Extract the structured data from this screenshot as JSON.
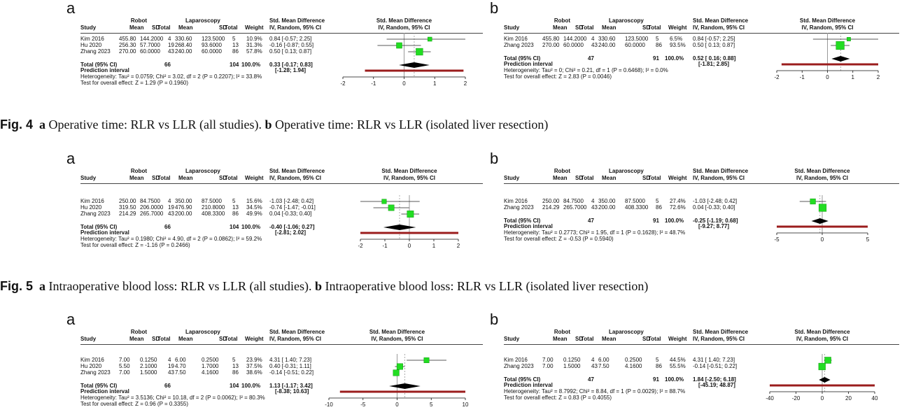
{
  "columns": {
    "study": "Study",
    "robot": "Robot",
    "laparoscopy": "Laparoscopy",
    "mean": "Mean",
    "sd": "SD",
    "total": "Total",
    "weight": "Weight",
    "smd_title": "Std. Mean Difference",
    "smd_sub": "IV, Random, 95% CI"
  },
  "total_label": "Total (95% CI)",
  "pi_label": "Prediction interval",
  "panels": [
    {
      "id": "fig4a",
      "label": "a",
      "axis": {
        "min": -2,
        "max": 2,
        "ticks": [
          "-2",
          "-1",
          "0",
          "1",
          "2"
        ]
      },
      "studies": [
        {
          "name": "Kim 2016",
          "r_mean": "455.80",
          "r_sd": "144.2000",
          "r_total": "4",
          "l_mean": "330.60",
          "l_sd": "123.5000",
          "l_total": "5",
          "weight": "10.9%",
          "ci": "0.84 [-0.57; 2.25]",
          "est": 0.84,
          "lo": -0.57,
          "hi": 2.25,
          "w": 10.9
        },
        {
          "name": "Hu 2020",
          "r_mean": "256.30",
          "r_sd": "57.7000",
          "r_total": "19",
          "l_mean": "268.40",
          "l_sd": "93.6000",
          "l_total": "13",
          "weight": "31.3%",
          "ci": "-0.16 [-0.87; 0.55]",
          "est": -0.16,
          "lo": -0.87,
          "hi": 0.55,
          "w": 31.3
        },
        {
          "name": "Zhang 2023",
          "r_mean": "270.00",
          "r_sd": "60.0000",
          "r_total": "43",
          "l_mean": "240.00",
          "l_sd": "60.0000",
          "l_total": "86",
          "weight": "57.8%",
          "ci": "0.50 [ 0.13; 0.87]",
          "est": 0.5,
          "lo": 0.13,
          "hi": 0.87,
          "w": 57.8
        }
      ],
      "total": {
        "r_total": "66",
        "l_total": "104",
        "weight": "100.0%",
        "ci": "0.33 [-0.17; 0.83]",
        "est": 0.33,
        "lo": -0.17,
        "hi": 0.83
      },
      "pi": {
        "ci": "[-1.28; 1.94]",
        "lo": -1.28,
        "hi": 1.94
      },
      "heterogeneity": "Heterogeneity: Tau² = 0.0759; Chi² = 3.02, df = 2 (P = 0.2207); I² = 33.8%",
      "overall": "Test for overall effect: Z = 1.29 (P = 0.1960)"
    },
    {
      "id": "fig4b",
      "label": "b",
      "axis": {
        "min": -2,
        "max": 2,
        "ticks": [
          "-2",
          "-1",
          "0",
          "1",
          "2"
        ]
      },
      "studies": [
        {
          "name": "Kim 2016",
          "r_mean": "455.80",
          "r_sd": "144.2000",
          "r_total": "4",
          "l_mean": "330.60",
          "l_sd": "123.5000",
          "l_total": "5",
          "weight": "6.5%",
          "ci": "0.84 [-0.57; 2.25]",
          "est": 0.84,
          "lo": -0.57,
          "hi": 2.25,
          "w": 6.5
        },
        {
          "name": "Zhang 2023",
          "r_mean": "270.00",
          "r_sd": "60.0000",
          "r_total": "43",
          "l_mean": "240.00",
          "l_sd": "60.0000",
          "l_total": "86",
          "weight": "93.5%",
          "ci": "0.50 [ 0.13; 0.87]",
          "est": 0.5,
          "lo": 0.13,
          "hi": 0.87,
          "w": 93.5
        }
      ],
      "total": {
        "r_total": "47",
        "l_total": "91",
        "weight": "100.0%",
        "ci": "0.52 [ 0.16; 0.88]",
        "est": 0.52,
        "lo": 0.16,
        "hi": 0.88
      },
      "pi": {
        "ci": "[-1.81; 2.85]",
        "lo": -1.81,
        "hi": 2.85
      },
      "heterogeneity": "Heterogeneity: Tau² = 0; Chi² = 0.21, df = 1 (P = 0.6468); I² = 0.0%",
      "overall": "Test for overall effect: Z = 2.83 (P = 0.0046)"
    },
    {
      "id": "fig5a",
      "label": "a",
      "axis": {
        "min": -2,
        "max": 2,
        "ticks": [
          "-2",
          "-1",
          "0",
          "1",
          "2"
        ]
      },
      "studies": [
        {
          "name": "Kim 2016",
          "r_mean": "250.00",
          "r_sd": "84.7500",
          "r_total": "4",
          "l_mean": "350.00",
          "l_sd": "87.5000",
          "l_total": "5",
          "weight": "15.6%",
          "ci": "-1.03 [-2.48; 0.42]",
          "est": -1.03,
          "lo": -2.48,
          "hi": 0.42,
          "w": 15.6
        },
        {
          "name": "Hu 2020",
          "r_mean": "319.50",
          "r_sd": "206.0000",
          "r_total": "19",
          "l_mean": "476.90",
          "l_sd": "210.8000",
          "l_total": "13",
          "weight": "34.5%",
          "ci": "-0.74 [-1.47; -0.01]",
          "est": -0.74,
          "lo": -1.47,
          "hi": -0.01,
          "w": 34.5
        },
        {
          "name": "Zhang 2023",
          "r_mean": "214.29",
          "r_sd": "265.7000",
          "r_total": "43",
          "l_mean": "200.00",
          "l_sd": "408.3300",
          "l_total": "86",
          "weight": "49.9%",
          "ci": "0.04 [-0.33; 0.40]",
          "est": 0.04,
          "lo": -0.33,
          "hi": 0.4,
          "w": 49.9
        }
      ],
      "total": {
        "r_total": "66",
        "l_total": "104",
        "weight": "100.0%",
        "ci": "-0.40 [-1.06; 0.27]",
        "est": -0.4,
        "lo": -1.06,
        "hi": 0.27
      },
      "pi": {
        "ci": "[-2.81; 2.02]",
        "lo": -2.81,
        "hi": 2.02
      },
      "heterogeneity": "Heterogeneity: Tau² = 0.1980; Chi² = 4.90, df = 2 (P = 0.0862); I² = 59.2%",
      "overall": "Test for overall effect: Z = -1.16 (P = 0.2466)"
    },
    {
      "id": "fig5b",
      "label": "b",
      "axis": {
        "min": -5,
        "max": 5,
        "ticks": [
          "-5",
          "0",
          "5"
        ]
      },
      "studies": [
        {
          "name": "Kim 2016",
          "r_mean": "250.00",
          "r_sd": "84.7500",
          "r_total": "4",
          "l_mean": "350.00",
          "l_sd": "87.5000",
          "l_total": "5",
          "weight": "27.4%",
          "ci": "-1.03 [-2.48; 0.42]",
          "est": -1.03,
          "lo": -2.48,
          "hi": 0.42,
          "w": 27.4
        },
        {
          "name": "Zhang 2023",
          "r_mean": "214.29",
          "r_sd": "265.7000",
          "r_total": "43",
          "l_mean": "200.00",
          "l_sd": "408.3300",
          "l_total": "86",
          "weight": "72.6%",
          "ci": "0.04 [-0.33; 0.40]",
          "est": 0.04,
          "lo": -0.33,
          "hi": 0.4,
          "w": 72.6
        }
      ],
      "total": {
        "r_total": "47",
        "l_total": "91",
        "weight": "100.0%",
        "ci": "-0.25 [-1.19; 0.68]",
        "est": -0.25,
        "lo": -1.19,
        "hi": 0.68
      },
      "pi": {
        "ci": "[-9.27; 8.77]",
        "lo": -9.27,
        "hi": 8.77
      },
      "heterogeneity": "Heterogeneity: Tau² = 0.2773; Chi² = 1.95, df = 1 (P = 0.1628); I² = 48.7%",
      "overall": "Test for overall effect: Z = -0.53 (P = 0.5940)"
    },
    {
      "id": "fig6a",
      "label": "a",
      "axis": {
        "min": -10,
        "max": 10,
        "ticks": [
          "-10",
          "-5",
          "0",
          "5",
          "10"
        ]
      },
      "studies": [
        {
          "name": "Kim 2016",
          "r_mean": "7.00",
          "r_sd": "0.1250",
          "r_total": "4",
          "l_mean": "6.00",
          "l_sd": "0.2500",
          "l_total": "5",
          "weight": "23.9%",
          "ci": "4.31 [ 1.40; 7.23]",
          "est": 4.31,
          "lo": 1.4,
          "hi": 7.23,
          "w": 23.9
        },
        {
          "name": "Hu 2020",
          "r_mean": "5.50",
          "r_sd": "2.1000",
          "r_total": "19",
          "l_mean": "4.70",
          "l_sd": "1.7000",
          "l_total": "13",
          "weight": "37.5%",
          "ci": "0.40 [-0.31; 1.11]",
          "est": 0.4,
          "lo": -0.31,
          "hi": 1.11,
          "w": 37.5
        },
        {
          "name": "Zhang 2023",
          "r_mean": "7.00",
          "r_sd": "1.5000",
          "r_total": "43",
          "l_mean": "7.50",
          "l_sd": "4.1600",
          "l_total": "86",
          "weight": "38.6%",
          "ci": "-0.14 [-0.51; 0.22]",
          "est": -0.14,
          "lo": -0.51,
          "hi": 0.22,
          "w": 38.6
        }
      ],
      "total": {
        "r_total": "66",
        "l_total": "104",
        "weight": "100.0%",
        "ci": "1.13 [-1.17; 3.42]",
        "est": 1.13,
        "lo": -1.17,
        "hi": 3.42
      },
      "pi": {
        "ci": "[-8.38; 10.63]",
        "lo": -8.38,
        "hi": 10.63
      },
      "heterogeneity": "Heterogeneity: Tau² = 3.5136; Chi² = 10.18, df = 2 (P = 0.0062); I² = 80.3%",
      "overall": "Test for overall effect: Z = 0.96 (P = 0.3355)"
    },
    {
      "id": "fig6b",
      "label": "b",
      "axis": {
        "min": -40,
        "max": 40,
        "ticks": [
          "-40",
          "-20",
          "0",
          "20",
          "40"
        ]
      },
      "studies": [
        {
          "name": "Kim 2016",
          "r_mean": "7.00",
          "r_sd": "0.1250",
          "r_total": "4",
          "l_mean": "6.00",
          "l_sd": "0.2500",
          "l_total": "5",
          "weight": "44.5%",
          "ci": "4.31 [ 1.40; 7.23]",
          "est": 4.31,
          "lo": 1.4,
          "hi": 7.23,
          "w": 44.5
        },
        {
          "name": "Zhang 2023",
          "r_mean": "7.00",
          "r_sd": "1.5000",
          "r_total": "43",
          "l_mean": "7.50",
          "l_sd": "4.1600",
          "l_total": "86",
          "weight": "55.5%",
          "ci": "-0.14 [-0.51; 0.22]",
          "est": -0.14,
          "lo": -0.51,
          "hi": 0.22,
          "w": 55.5
        }
      ],
      "total": {
        "r_total": "47",
        "l_total": "91",
        "weight": "100.0%",
        "ci": "1.84 [-2.50; 6.18]",
        "est": 1.84,
        "lo": -2.5,
        "hi": 6.18
      },
      "pi": {
        "ci": "[-45.19; 48.87]",
        "lo": -45.19,
        "hi": 48.87
      },
      "heterogeneity": "Heterogeneity: Tau² = 8.7992; Chi² = 8.84, df = 1 (P = 0.0029); I² = 88.7%",
      "overall": "Test for overall effect: Z = 0.83 (P = 0.4055)"
    }
  ],
  "captions": {
    "fig4": {
      "fig": "Fig. 4",
      "a": "a",
      "a_text": " Operative time: RLR vs LLR (all studies). ",
      "b": "b",
      "b_text": " Operative time: RLR vs LLR (isolated liver resection)"
    },
    "fig5": {
      "fig": "Fig. 5",
      "a": "a",
      "a_text": " Intraoperative blood loss: RLR vs LLR (all studies). ",
      "b": "b",
      "b_text": " Intraoperative blood loss: RLR vs LLR (isolated liver resection)"
    }
  },
  "colors": {
    "square": "#22dd22",
    "square_stroke": "#119911",
    "diamond": "#000000",
    "pi_bar": "#9b1c1c",
    "axis": "#111111",
    "refline": "#999999"
  }
}
